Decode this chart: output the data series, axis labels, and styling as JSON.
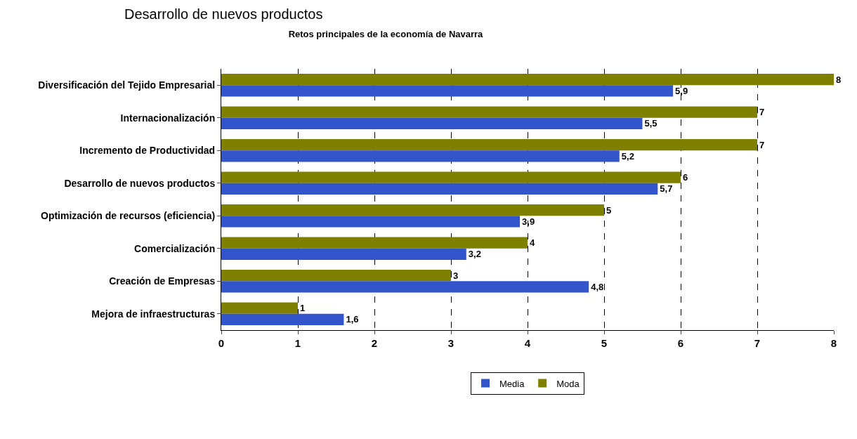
{
  "chart_data": {
    "type": "bar",
    "orientation": "horizontal",
    "title": "Retos principales de la economía de Navarra",
    "categories": [
      "Diversificación del Tejido Empresarial",
      "Internacionalización",
      "Incremento de Productividad",
      "Desarrollo de nuevos productos",
      "Optimización de recursos (eficiencia)",
      "Comercialización",
      "Creación de Empresas",
      "Mejora de infraestructuras"
    ],
    "series": [
      {
        "name": "Media",
        "color": "#3355cc",
        "values": [
          5.9,
          5.5,
          5.2,
          5.7,
          3.9,
          3.2,
          4.8,
          1.6
        ],
        "value_labels": [
          "5,9",
          "5,5",
          "5,2",
          "5,7",
          "3,9",
          "3,2",
          "4,8",
          "1,6"
        ]
      },
      {
        "name": "Moda",
        "color": "#808000",
        "values": [
          8,
          7,
          7,
          6,
          5,
          4,
          3,
          1
        ],
        "value_labels": [
          "8",
          "7",
          "7",
          "6",
          "5",
          "4",
          "3",
          "1"
        ]
      }
    ],
    "xlim": [
      0,
      8
    ],
    "xticks": [
      0,
      1,
      2,
      3,
      4,
      5,
      6,
      7,
      8
    ],
    "grid": "x",
    "legend": "bottom",
    "annotations": [
      "Desarrollo de nuevos productos"
    ]
  }
}
